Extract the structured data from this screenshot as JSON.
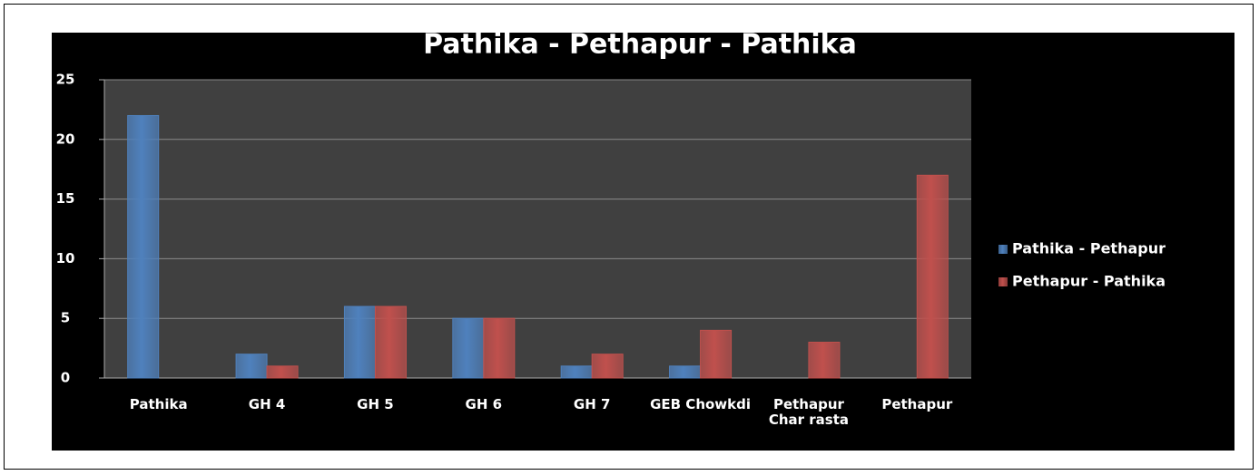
{
  "chart_data": {
    "type": "bar",
    "title": "Pathika - Pethapur - Pathika",
    "categories": [
      "Pathika",
      "GH 4",
      "GH 5",
      "GH 6",
      "GH 7",
      "GEB Chowkdi",
      "Pethapur Char rasta",
      "Pethapur"
    ],
    "series": [
      {
        "name": "Pathika - Pethapur",
        "color": "#4f81bd",
        "values": [
          22,
          2,
          6,
          5,
          1,
          1,
          null,
          null
        ]
      },
      {
        "name": "Pethapur - Pathika",
        "color": "#c0504d",
        "values": [
          null,
          1,
          6,
          5,
          2,
          4,
          3,
          17
        ]
      }
    ],
    "ylim": [
      0,
      25
    ],
    "yticks": [
      0,
      5,
      10,
      15,
      20,
      25
    ],
    "grid": true,
    "legend": "right"
  }
}
